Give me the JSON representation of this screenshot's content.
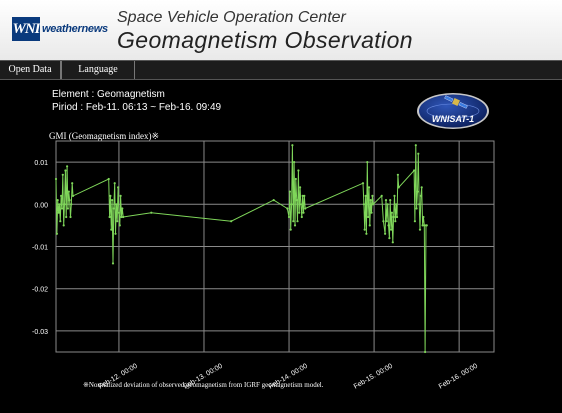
{
  "header": {
    "logo_text": "WNI",
    "brand_text": "weathernews",
    "subtitle": "Space Vehicle Operation Center",
    "title": "Geomagnetism Observation"
  },
  "nav": {
    "open_data_label": "Open Data",
    "language_label": "Language"
  },
  "info": {
    "element": "Element : Geomagnetism",
    "period": "Piriod : Feb-11. 06:13 ~ Feb-16. 09:49"
  },
  "badge": {
    "text": "WNISAT-1"
  },
  "chart_title": "GMI (Geomagnetism index)※",
  "footnote": "※Normalized deviation of observed geomagnetism from IGRF geomagnetism model.",
  "colors": {
    "line": "#7fd65a",
    "grid": "#8a8a8a",
    "brand": "#0a3a7d"
  },
  "chart_data": {
    "type": "line",
    "title": "GMI (Geomagnetism index)※",
    "xlabel": "",
    "ylabel": "",
    "x_tick_labels": [
      "Feb-12. 00:00",
      "Feb-13. 00:00",
      "Feb-14. 00:00",
      "Feb-15. 00:00",
      "Feb-16. 00:00"
    ],
    "x_ticks": [
      1.0,
      2.0,
      3.0,
      4.0,
      5.0
    ],
    "xlim": [
      0.26,
      5.41
    ],
    "y_tick_labels": [
      "0.01",
      "0.00",
      "-0.01",
      "-0.02",
      "-0.03"
    ],
    "y_ticks": [
      0.01,
      0.0,
      -0.01,
      -0.02,
      -0.03
    ],
    "ylim": [
      -0.035,
      0.015
    ],
    "grid": true,
    "legend": "none",
    "series": [
      {
        "points": [
          [
            0.26,
            0.006
          ],
          [
            0.27,
            -0.007
          ],
          [
            0.28,
            0.001
          ],
          [
            0.29,
            -0.002
          ],
          [
            0.3,
            0.0
          ],
          [
            0.31,
            -0.004
          ],
          [
            0.32,
            0.002
          ],
          [
            0.33,
            -0.001
          ],
          [
            0.34,
            0.007
          ],
          [
            0.35,
            -0.005
          ],
          [
            0.36,
            0.0
          ],
          [
            0.37,
            0.008
          ],
          [
            0.38,
            -0.003
          ],
          [
            0.39,
            0.009
          ],
          [
            0.4,
            -0.001
          ],
          [
            0.41,
            0.003
          ],
          [
            0.42,
            0.001
          ],
          [
            0.43,
            -0.003
          ],
          [
            0.44,
            0.0
          ],
          [
            0.45,
            0.005
          ],
          [
            0.46,
            0.002
          ],
          [
            0.88,
            0.006
          ],
          [
            0.89,
            -0.003
          ],
          [
            0.9,
            0.002
          ],
          [
            0.91,
            -0.006
          ],
          [
            0.92,
            0.001
          ],
          [
            0.93,
            -0.014
          ],
          [
            0.94,
            -0.001
          ],
          [
            0.95,
            0.005
          ],
          [
            0.96,
            -0.007
          ],
          [
            0.97,
            0.0
          ],
          [
            0.98,
            -0.004
          ],
          [
            0.99,
            0.004
          ],
          [
            1.0,
            -0.002
          ],
          [
            1.01,
            -0.005
          ],
          [
            1.02,
            0.002
          ],
          [
            1.03,
            -0.003
          ],
          [
            1.04,
            -0.001
          ],
          [
            1.05,
            -0.003
          ],
          [
            1.38,
            -0.002
          ],
          [
            2.32,
            -0.004
          ],
          [
            2.82,
            0.001
          ],
          [
            2.98,
            -0.001
          ],
          [
            3.0,
            -0.003
          ],
          [
            3.01,
            0.003
          ],
          [
            3.02,
            -0.006
          ],
          [
            3.03,
            0.0
          ],
          [
            3.04,
            0.014
          ],
          [
            3.05,
            -0.004
          ],
          [
            3.06,
            0.01
          ],
          [
            3.07,
            -0.005
          ],
          [
            3.08,
            0.006
          ],
          [
            3.09,
            0.001
          ],
          [
            3.1,
            -0.004
          ],
          [
            3.11,
            0.008
          ],
          [
            3.12,
            -0.002
          ],
          [
            3.13,
            0.004
          ],
          [
            3.14,
            0.0
          ],
          [
            3.15,
            -0.003
          ],
          [
            3.16,
            0.002
          ],
          [
            3.17,
            -0.002
          ],
          [
            3.18,
            0.002
          ],
          [
            3.19,
            -0.001
          ],
          [
            3.87,
            0.005
          ],
          [
            3.88,
            0.0
          ],
          [
            3.89,
            -0.006
          ],
          [
            3.9,
            0.002
          ],
          [
            3.91,
            -0.007
          ],
          [
            3.92,
            0.01
          ],
          [
            3.93,
            -0.003
          ],
          [
            3.94,
            0.004
          ],
          [
            3.95,
            -0.005
          ],
          [
            3.96,
            0.001
          ],
          [
            3.97,
            -0.002
          ],
          [
            3.98,
            0.002
          ],
          [
            3.99,
            0.0
          ],
          [
            4.09,
            0.002
          ],
          [
            4.11,
            -0.004
          ],
          [
            4.13,
            -0.007
          ],
          [
            4.14,
            0.001
          ],
          [
            4.15,
            -0.004
          ],
          [
            4.16,
            0.0
          ],
          [
            4.17,
            -0.005
          ],
          [
            4.18,
            -0.008
          ],
          [
            4.19,
            0.001
          ],
          [
            4.2,
            -0.006
          ],
          [
            4.21,
            -0.002
          ],
          [
            4.22,
            -0.009
          ],
          [
            4.23,
            -0.003
          ],
          [
            4.24,
            0.002
          ],
          [
            4.25,
            -0.004
          ],
          [
            4.26,
            0.0
          ],
          [
            4.27,
            -0.003
          ],
          [
            4.28,
            0.007
          ],
          [
            4.29,
            0.004
          ],
          [
            4.47,
            0.008
          ],
          [
            4.48,
            -0.004
          ],
          [
            4.49,
            0.014
          ],
          [
            4.5,
            -0.001
          ],
          [
            4.51,
            0.003
          ],
          [
            4.52,
            0.012
          ],
          [
            4.53,
            0.0
          ],
          [
            4.54,
            -0.006
          ],
          [
            4.55,
            0.002
          ],
          [
            4.56,
            0.004
          ],
          [
            4.57,
            -0.005
          ],
          [
            4.58,
            -0.003
          ],
          [
            4.59,
            -0.005
          ],
          [
            4.6,
            -0.035
          ],
          [
            4.61,
            -0.005
          ],
          [
            4.62,
            -0.005
          ]
        ]
      }
    ]
  }
}
